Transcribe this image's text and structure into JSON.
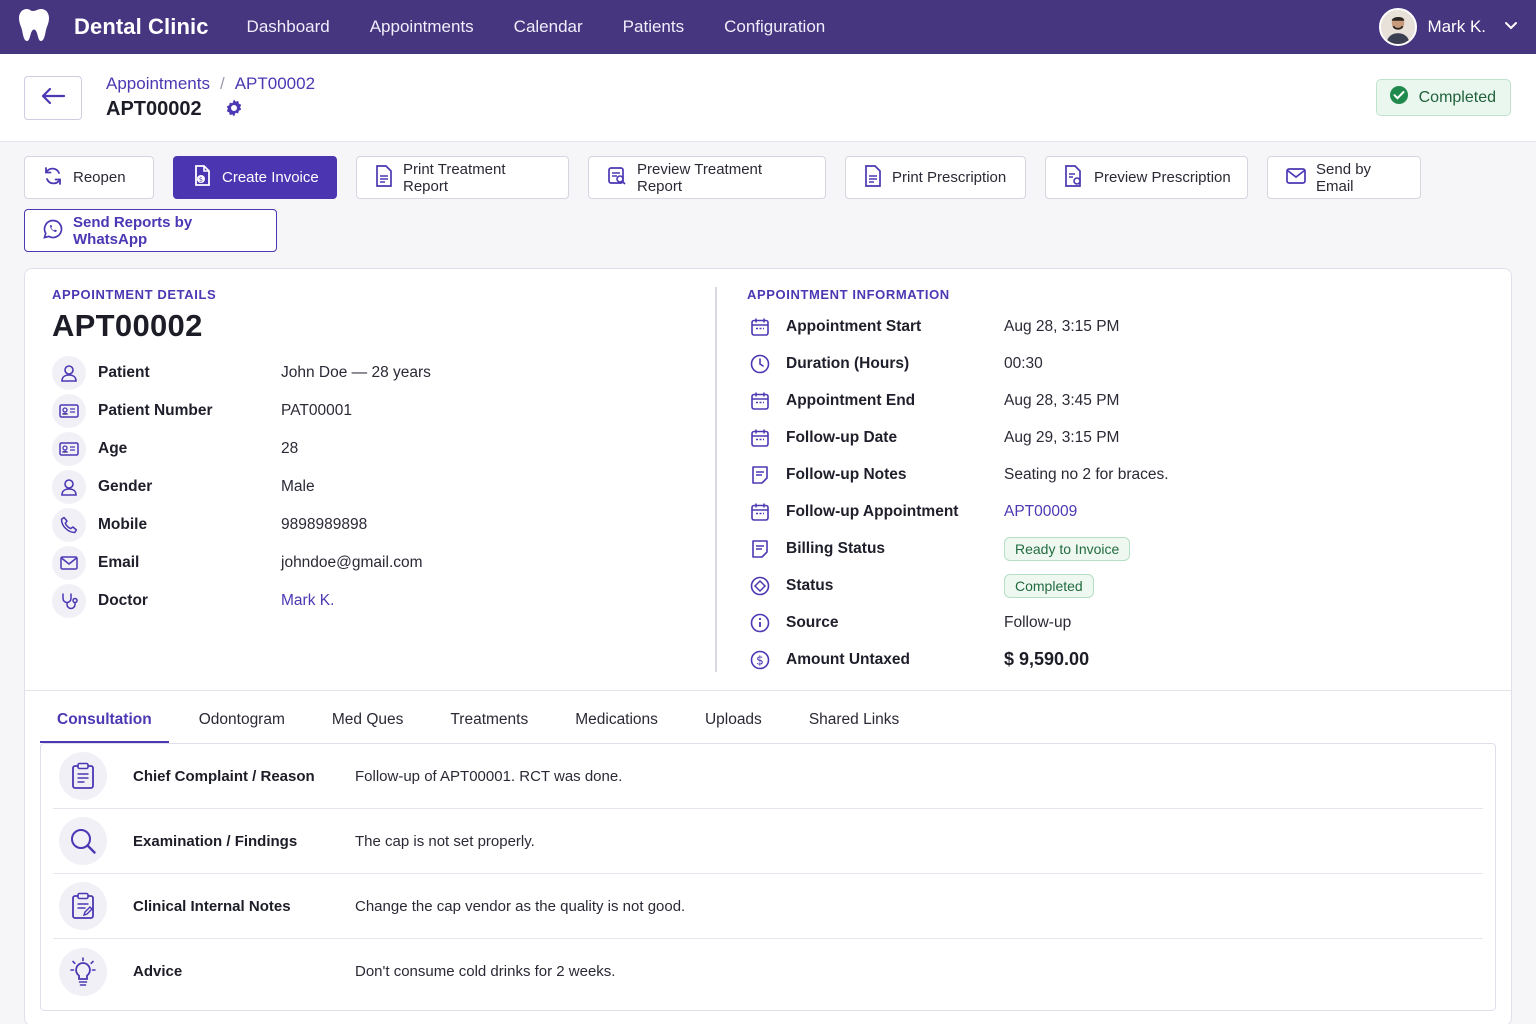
{
  "app": {
    "brand": "Dental Clinic",
    "nav": [
      "Dashboard",
      "Appointments",
      "Calendar",
      "Patients",
      "Configuration"
    ],
    "user": "Mark K."
  },
  "header": {
    "breadcrumb_parent": "Appointments",
    "breadcrumb_sep": "/",
    "breadcrumb_current": "APT00002",
    "title": "APT00002",
    "status": "Completed"
  },
  "actions": {
    "reopen": "Reopen",
    "create_invoice": "Create Invoice",
    "print_treatment": "Print Treatment Report",
    "preview_treatment": "Preview Treatment Report",
    "print_prescription": "Print Prescription",
    "preview_prescription": "Preview Prescription",
    "send_email": "Send by Email",
    "send_whatsapp": "Send Reports by WhatsApp"
  },
  "details": {
    "section": "APPOINTMENT DETAILS",
    "id": "APT00002",
    "fields": [
      {
        "label": "Patient",
        "value": "John Doe — 28 years",
        "icon": "person-icon"
      },
      {
        "label": "Patient Number",
        "value": "PAT00001",
        "icon": "id-card-icon"
      },
      {
        "label": "Age",
        "value": "28",
        "icon": "id-card-icon"
      },
      {
        "label": "Gender",
        "value": "Male",
        "icon": "person-icon"
      },
      {
        "label": "Mobile",
        "value": "9898989898",
        "icon": "phone-icon"
      },
      {
        "label": "Email",
        "value": "johndoe@gmail.com",
        "icon": "mail-icon"
      },
      {
        "label": "Doctor",
        "value": "Mark K.",
        "icon": "stethoscope-icon"
      }
    ]
  },
  "info": {
    "section": "APPOINTMENT INFORMATION",
    "fields": [
      {
        "label": "Appointment Start",
        "value": "Aug 28, 3:15 PM",
        "icon": "calendar-icon"
      },
      {
        "label": "Duration (Hours)",
        "value": "00:30",
        "icon": "clock-icon"
      },
      {
        "label": "Appointment End",
        "value": "Aug 28, 3:45 PM",
        "icon": "calendar-icon"
      },
      {
        "label": "Follow-up Date",
        "value": "Aug 29, 3:15 PM",
        "icon": "calendar-icon"
      },
      {
        "label": "Follow-up Notes",
        "value": "Seating no 2 for braces.",
        "icon": "note-icon"
      },
      {
        "label": "Follow-up Appointment",
        "value": "APT00009",
        "icon": "calendar-icon"
      },
      {
        "label": "Billing Status",
        "value": "Ready to Invoice",
        "icon": "note-icon"
      },
      {
        "label": "Status",
        "value": "Completed",
        "icon": "status-icon"
      },
      {
        "label": "Source",
        "value": "Follow-up",
        "icon": "info-icon"
      },
      {
        "label": "Amount Untaxed",
        "value": "$ 9,590.00",
        "icon": "dollar-icon"
      }
    ]
  },
  "tabs": [
    "Consultation",
    "Odontogram",
    "Med Ques",
    "Treatments",
    "Medications",
    "Uploads",
    "Shared Links"
  ],
  "consultation": [
    {
      "label": "Chief Complaint / Reason",
      "value": "Follow-up of APT00001. RCT was done.",
      "icon": "clipboard-icon"
    },
    {
      "label": "Examination / Findings",
      "value": "The cap is not set properly.",
      "icon": "magnifier-icon"
    },
    {
      "label": "Clinical Internal Notes",
      "value": "Change the cap vendor as the quality is not good.",
      "icon": "clipboard-edit-icon"
    },
    {
      "label": "Advice",
      "value": "Don't consume cold drinks for 2 weeks.",
      "icon": "lightbulb-icon"
    }
  ],
  "colors": {
    "nav_bg": "#46357f",
    "accent": "#4b38b3",
    "success": "#20603a"
  }
}
